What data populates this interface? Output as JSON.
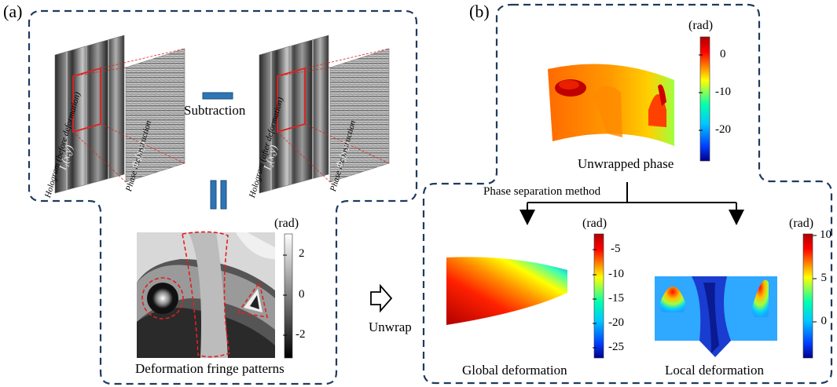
{
  "panel_a": {
    "letter": "(a)",
    "hologram_before_label": "Hologram (before deformation)",
    "hologram_after_label": "Hologram (after deformation)",
    "phase_reconstruction_label": "Phase reconstruction",
    "i1_symbol": "I₁(x,y)",
    "i2_symbol": "I₂(x,y)",
    "phi1_symbol": "Φ₁(x,y)",
    "phi2_symbol": "Φ₂(x,y)",
    "subtraction_label": "Subtraction",
    "fringe_caption": "Deformation fringe patterns",
    "fringe_colorbar": {
      "unit": "(rad)",
      "ticks": [
        "2",
        "0",
        "-2"
      ]
    },
    "unwrap_label": "Unwrap"
  },
  "panel_b": {
    "letter": "(b)",
    "unwrapped_caption": "Unwrapped phase",
    "unwrapped_colorbar": {
      "unit": "(rad)",
      "ticks": [
        "0",
        "-10",
        "-20"
      ]
    },
    "method_label": "Phase separation method",
    "global_caption": "Global deformation",
    "global_colorbar": {
      "unit": "(rad)",
      "ticks": [
        "-5",
        "-10",
        "-15",
        "-20",
        "-25"
      ]
    },
    "local_caption": "Local deformation",
    "local_colorbar": {
      "unit": "(rad)",
      "ticks": [
        "10",
        "5",
        "0"
      ]
    }
  },
  "colors": {
    "dashed_border": "#1f3a5f",
    "accent_blue": "#2e75b6",
    "red_marker": "#e02020"
  }
}
